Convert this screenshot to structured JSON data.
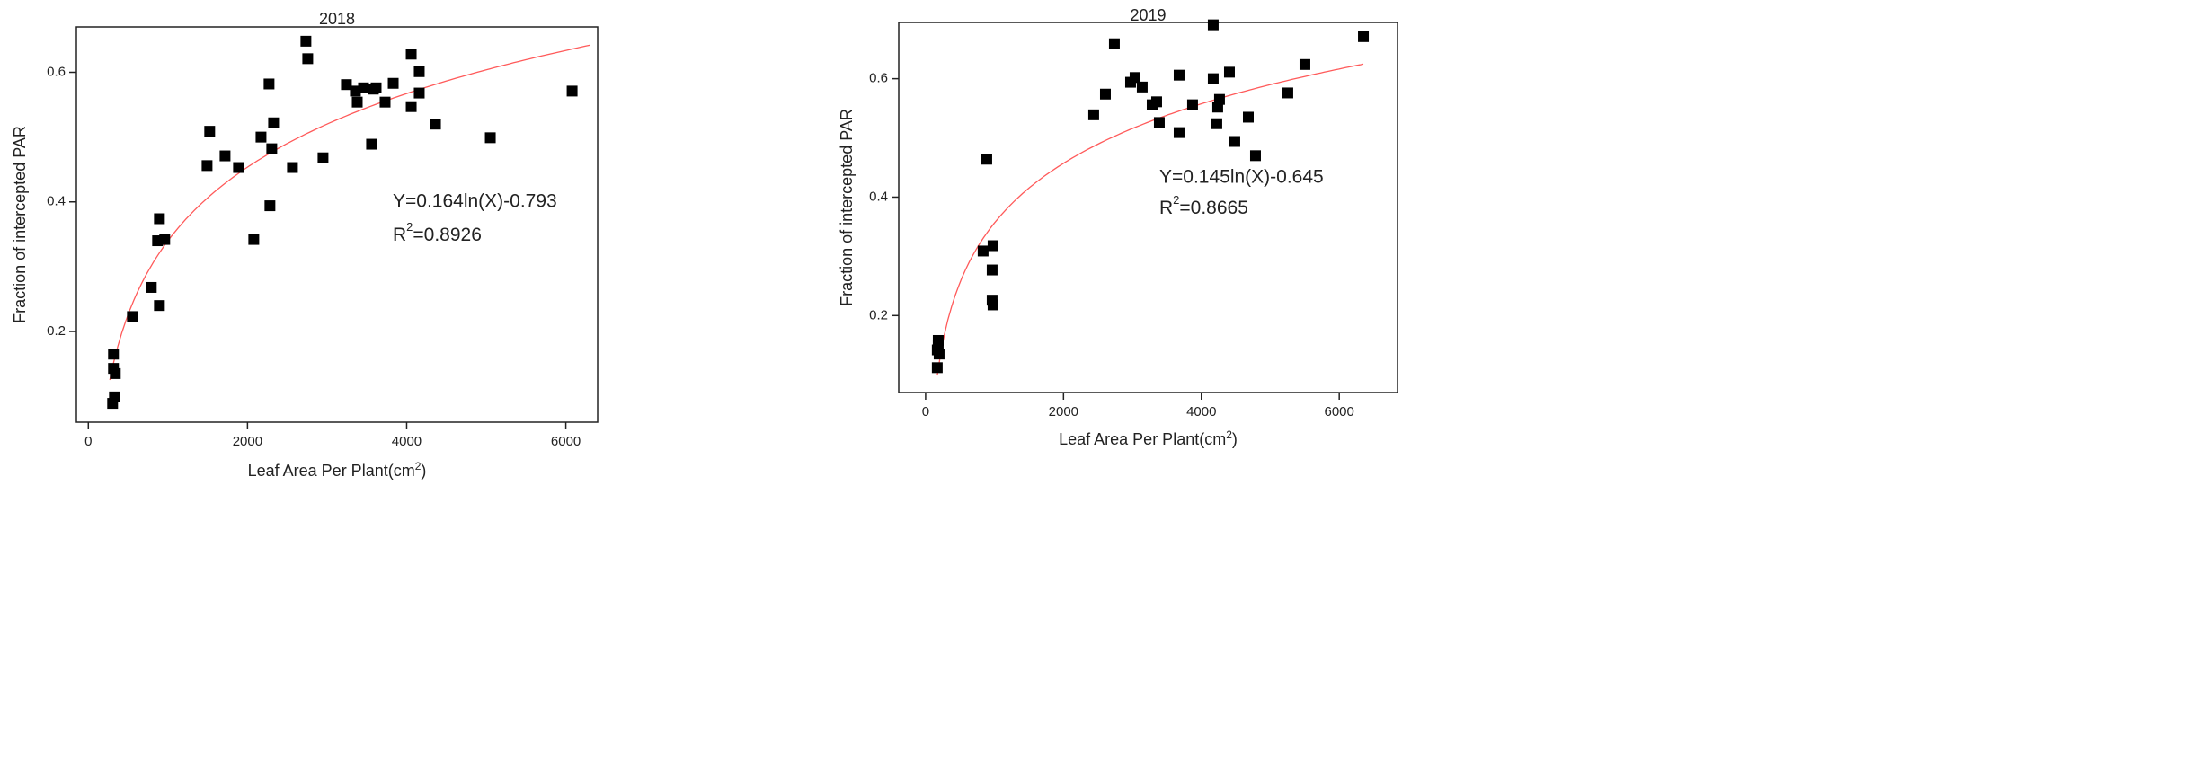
{
  "chart_data": [
    {
      "type": "scatter",
      "title": "2018",
      "x_label": "Leaf Area Per Plant(cm",
      "x_label_sup": "2",
      "x_label_end": ")",
      "y_label": "Fraction of intercepted PAR",
      "equation": "Y=0.164ln(X)-0.793",
      "r2_label": "R",
      "r2_sup": "2",
      "r2_value": "=0.8926",
      "xlim": [
        -150,
        6400
      ],
      "ylim": [
        0.06,
        0.67
      ],
      "xticks": [
        0,
        2000,
        4000,
        6000
      ],
      "yticks": [
        0.2,
        0.4,
        0.6
      ],
      "series": [
        {
          "color": "#000000",
          "x": [
            305,
            328,
            316,
            316,
            339,
            554,
            791,
            893,
            870,
            960,
            893,
            1492,
            1525,
            1718,
            1887,
            2079,
            2170,
            2271,
            2305,
            2328,
            2282,
            2565,
            2734,
            2757,
            2949,
            3243,
            3356,
            3379,
            3458,
            3582,
            3616,
            3559,
            3729,
            3831,
            4057,
            4057,
            4158,
            4158,
            4362,
            5051,
            6079
          ],
          "values": [
            0.089,
            0.099,
            0.143,
            0.165,
            0.135,
            0.223,
            0.268,
            0.374,
            0.34,
            0.342,
            0.24,
            0.456,
            0.509,
            0.471,
            0.453,
            0.342,
            0.5,
            0.582,
            0.482,
            0.522,
            0.394,
            0.453,
            0.648,
            0.621,
            0.468,
            0.581,
            0.571,
            0.554,
            0.576,
            0.574,
            0.576,
            0.489,
            0.554,
            0.583,
            0.628,
            0.547,
            0.601,
            0.568,
            0.52,
            0.499,
            0.571
          ]
        }
      ],
      "fit": {
        "slope": 0.164,
        "intercept": -0.793,
        "xrange": [
          270,
          6300
        ],
        "color": "#ff5a5a"
      }
    },
    {
      "type": "scatter",
      "title": "2019",
      "x_label": "Leaf Area Per Plant(cm",
      "x_label_sup": "2",
      "x_label_end": ")",
      "y_label": "Fraction of intercepted PAR",
      "equation": "Y=0.145ln(X)-0.645",
      "r2_label": "R",
      "r2_sup": "2",
      "r2_value": "=0.8665",
      "xlim": [
        -390,
        6845
      ],
      "ylim": [
        0.07,
        0.695
      ],
      "xticks": [
        0,
        2000,
        4000,
        6000
      ],
      "yticks": [
        0.2,
        0.4,
        0.6
      ],
      "series": [
        {
          "color": "#000000",
          "x": [
            169,
            169,
            183,
            196,
            183,
            834,
            887,
            978,
            965,
            965,
            978,
            2438,
            2608,
            2738,
            2973,
            3038,
            3142,
            3286,
            3351,
            3390,
            3677,
            3677,
            3872,
            4172,
            4172,
            4224,
            4237,
            4263,
            4407,
            4485,
            4681,
            4785,
            5254,
            5502,
            6350
          ],
          "values": [
            0.142,
            0.112,
            0.15,
            0.135,
            0.158,
            0.309,
            0.464,
            0.318,
            0.277,
            0.226,
            0.218,
            0.539,
            0.574,
            0.659,
            0.594,
            0.602,
            0.586,
            0.556,
            0.561,
            0.526,
            0.606,
            0.509,
            0.556,
            0.691,
            0.6,
            0.524,
            0.552,
            0.565,
            0.611,
            0.494,
            0.535,
            0.47,
            0.576,
            0.624,
            0.671
          ]
        }
      ],
      "fit": {
        "slope": 0.145,
        "intercept": -0.645,
        "xrange": [
          169,
          6350
        ],
        "color": "#ff5a5a"
      }
    }
  ]
}
